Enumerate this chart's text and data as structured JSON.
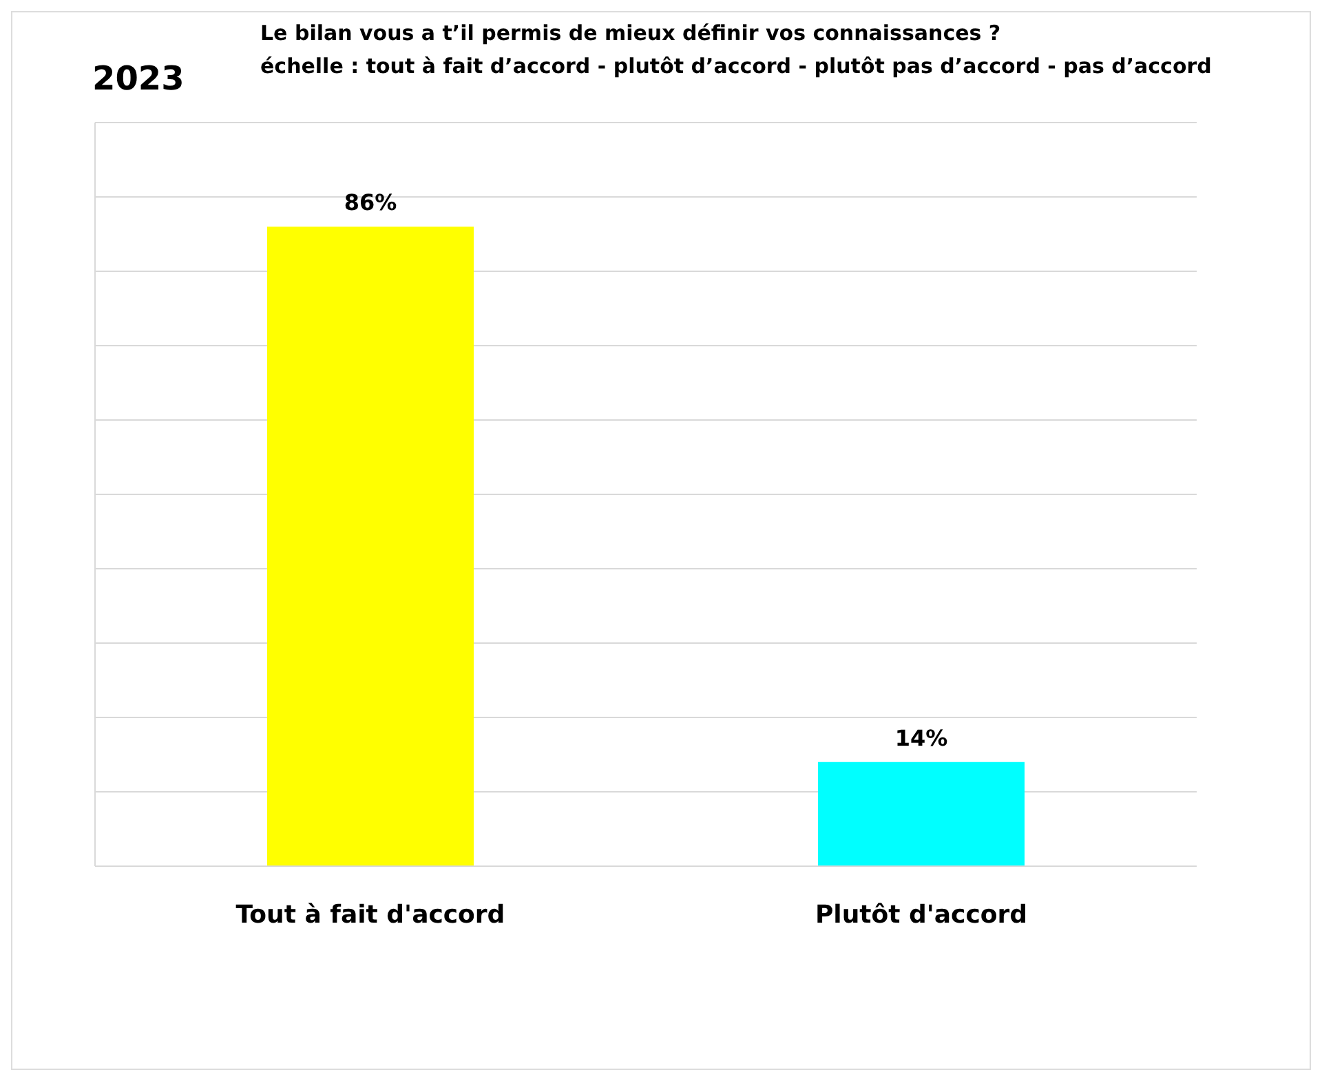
{
  "chart_data": {
    "type": "bar",
    "title": "Le bilan vous a t’il permis de mieux définir vos connaissances ?",
    "subtitle": "échelle : tout à fait d’accord - plutôt d’accord - plutôt pas d’accord - pas d’accord",
    "annotations": [
      "2023"
    ],
    "categories": [
      "Tout à fait d'accord",
      "Plutôt d'accord"
    ],
    "values": [
      86,
      14
    ],
    "colors": [
      "#ffff00",
      "#00ffff"
    ],
    "value_labels": [
      "86%",
      "14%"
    ],
    "ylim": [
      0,
      100
    ],
    "yticks": [
      {
        "value": 0,
        "label": null
      },
      {
        "value": 10,
        "label": null
      },
      {
        "value": 20,
        "label": null
      },
      {
        "value": 30,
        "label": null
      },
      {
        "value": 40,
        "label": null
      },
      {
        "value": 50,
        "label": null
      },
      {
        "value": 60,
        "label": null
      },
      {
        "value": 70,
        "label": null
      },
      {
        "value": 80,
        "label": null
      },
      {
        "value": 90,
        "label": null
      },
      {
        "value": 100,
        "label": null
      }
    ],
    "tick_labels": "x",
    "grid": "y"
  }
}
